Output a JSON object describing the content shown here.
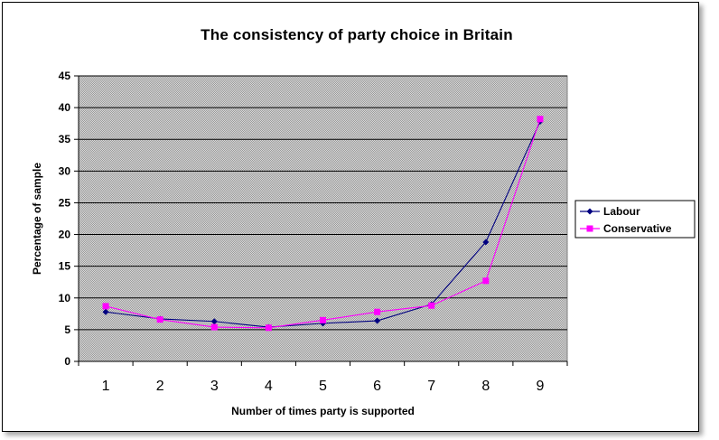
{
  "chart_data": {
    "type": "line",
    "title": "The consistency of party choice in Britain",
    "xlabel": "Number of times party is supported",
    "ylabel": "Percentage of sample",
    "x": [
      1,
      2,
      3,
      4,
      5,
      6,
      7,
      8,
      9
    ],
    "x_tick_labels": [
      "1",
      "2",
      "3",
      "4",
      "5",
      "6",
      "7",
      "8",
      "9"
    ],
    "y_ticks": [
      "0",
      "5",
      "10",
      "15",
      "20",
      "25",
      "30",
      "35",
      "40",
      "45"
    ],
    "ylim": [
      0,
      45
    ],
    "grid": "horizontal",
    "legend_position": "right",
    "series": [
      {
        "name": "Labour",
        "color": "#000080",
        "marker": "diamond",
        "values": [
          7.8,
          6.7,
          6.3,
          5.4,
          6.0,
          6.4,
          9.0,
          18.8,
          37.8
        ]
      },
      {
        "name": "Conservative",
        "color": "#ff00ff",
        "marker": "square",
        "values": [
          8.7,
          6.6,
          5.4,
          5.3,
          6.5,
          7.8,
          8.8,
          12.7,
          38.2
        ]
      }
    ]
  }
}
